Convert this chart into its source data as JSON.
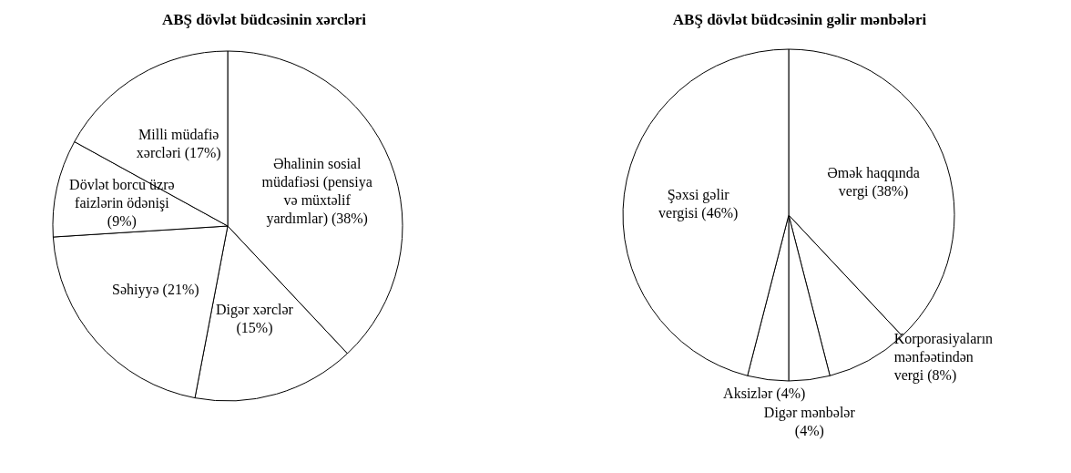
{
  "chart_data": [
    {
      "type": "pie",
      "title": "ABŞ dövlət büdcəsinin xərcləri",
      "categories": [
        "Əhalinin sosial müdafiəsi (pensiya və müxtəlif yardımlar) (38%)",
        "Digər xərclər (15%)",
        "Səhiyyə (21%)",
        "Dövlət borcu üzrə faizlərin ödənişi (9%)",
        "Milli müdafiə xərcləri (17%)"
      ],
      "values": [
        38,
        15,
        21,
        9,
        17
      ],
      "colors": [
        "#ffffff",
        "#ffffff",
        "#ffffff",
        "#ffffff",
        "#ffffff"
      ],
      "legend": false
    },
    {
      "type": "pie",
      "title": "ABŞ dövlət büdcəsinin gəlir mənbələri",
      "categories": [
        "Əmək haqqında vergi (38%)",
        "Korporasiyaların mənfəətindən vergi (8%)",
        "Digər mənbələr (4%)",
        "Aksizlər (4%)",
        "Şəxsi gəlir vergisi (46%)"
      ],
      "values": [
        38,
        8,
        4,
        4,
        46
      ],
      "colors": [
        "#ffffff",
        "#ffffff",
        "#ffffff",
        "#ffffff",
        "#ffffff"
      ],
      "legend": false
    }
  ]
}
